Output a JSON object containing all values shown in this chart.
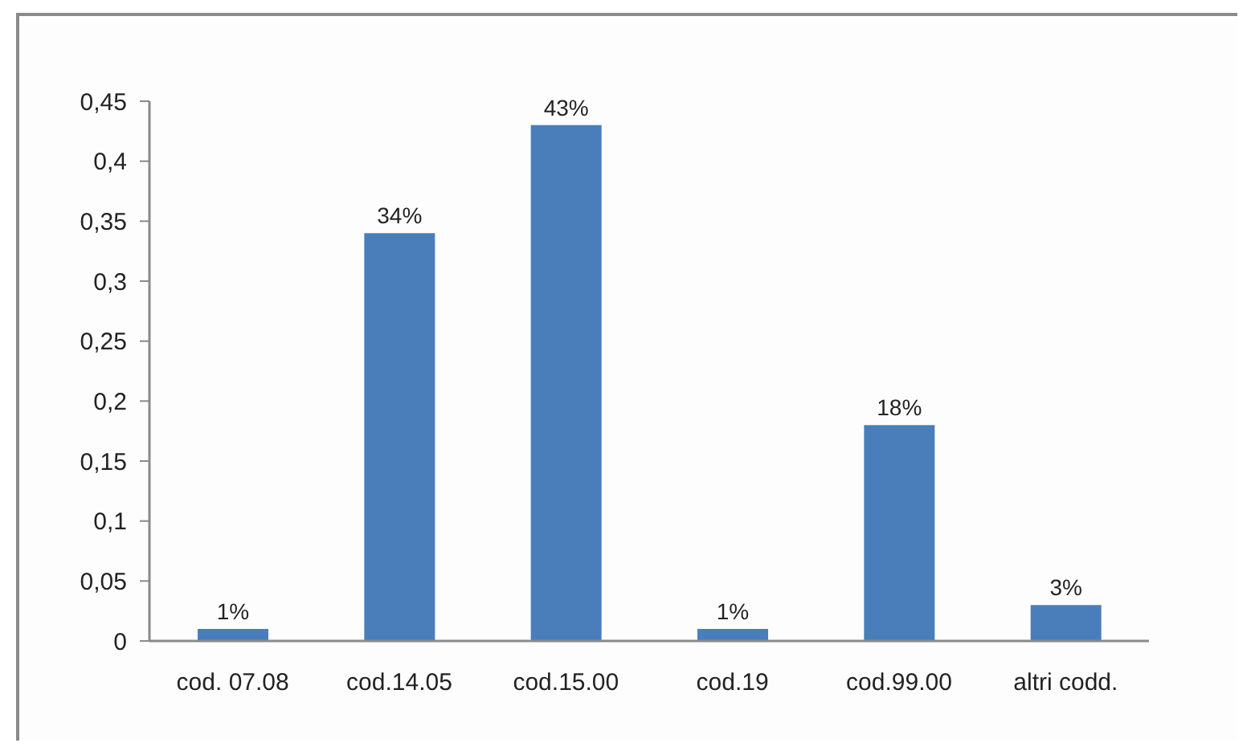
{
  "chart_data": {
    "type": "bar",
    "categories": [
      "cod. 07.08",
      "cod.14.05",
      "cod.15.00",
      "cod.19",
      "cod.99.00",
      "altri codd."
    ],
    "values": [
      0.01,
      0.34,
      0.43,
      0.01,
      0.18,
      0.03
    ],
    "value_labels": [
      "1%",
      "34%",
      "43%",
      "1%",
      "18%",
      "3%"
    ],
    "color": "#4a7ebb",
    "ylim": [
      0,
      0.45
    ],
    "yticks": [
      0,
      {
        "value": 0.05,
        "label": "0,05"
      },
      {
        "value": 0.1,
        "label": "0,1"
      },
      {
        "value": 0.15,
        "label": "0,15"
      },
      {
        "value": 0.2,
        "label": "0,2"
      },
      {
        "value": 0.25,
        "label": "0,25"
      },
      {
        "value": 0.3,
        "label": "0,3"
      },
      {
        "value": 0.35,
        "label": "0,35"
      },
      {
        "value": 0.4,
        "label": "0,4"
      },
      {
        "value": 0.45,
        "label": "0,45"
      }
    ]
  }
}
